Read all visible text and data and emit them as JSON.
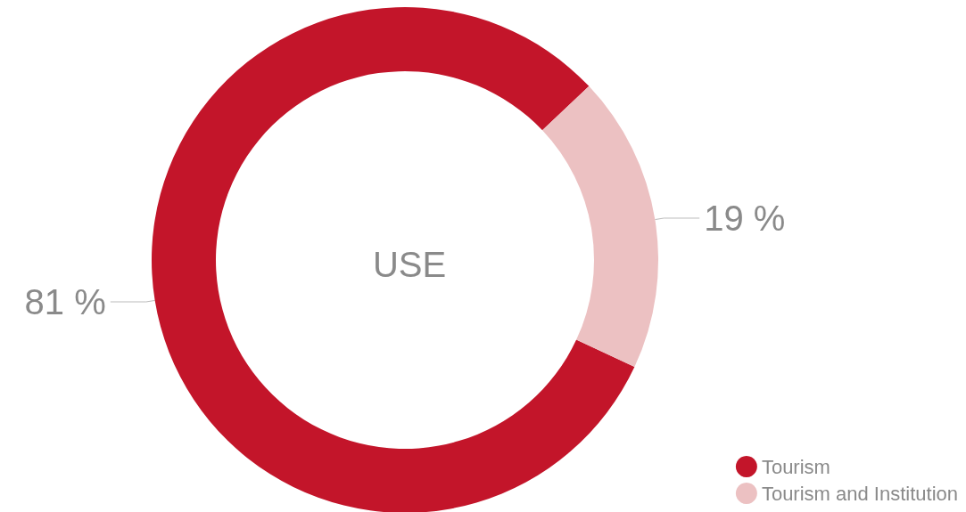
{
  "chart_data": {
    "type": "donut",
    "title": "USE",
    "categories": [
      "Tourism",
      "Tourism and Institution"
    ],
    "values": [
      81,
      19
    ],
    "colors": [
      "#c3152a",
      "#ecc1c2"
    ],
    "value_labels": [
      "81 %",
      "19 %"
    ],
    "legend": "bottom right"
  }
}
